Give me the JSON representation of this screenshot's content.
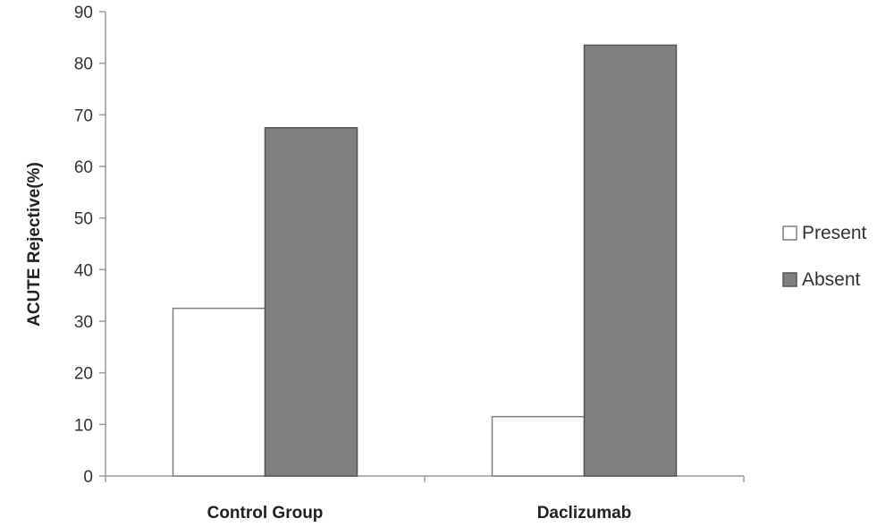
{
  "chart_data": {
    "type": "bar",
    "title": "",
    "xlabel": "",
    "ylabel": "ACUTE Rejective(%)",
    "ylim": [
      0,
      90
    ],
    "yticks": [
      0,
      10,
      20,
      30,
      40,
      50,
      60,
      70,
      80,
      90
    ],
    "categories": [
      "Control Group",
      "Daclizumab"
    ],
    "series": [
      {
        "name": "Present",
        "values": [
          32.5,
          11.5
        ],
        "color": "#ffffff",
        "stroke": "#7f7f7f"
      },
      {
        "name": "Absent",
        "values": [
          67.5,
          83.5
        ],
        "color": "#808080",
        "stroke": "#555555"
      }
    ],
    "grid": false,
    "legend_position": "right"
  }
}
